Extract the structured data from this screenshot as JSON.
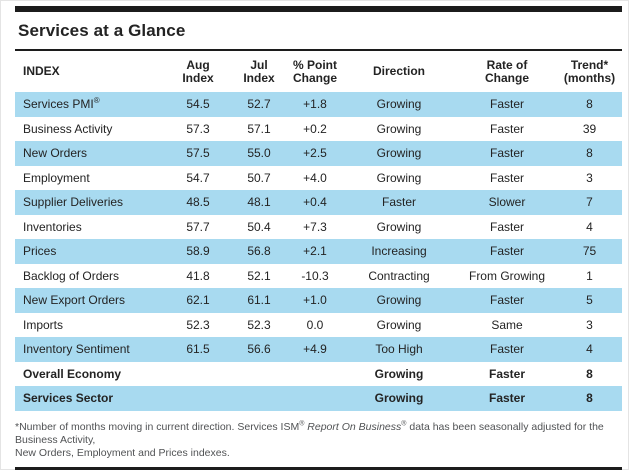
{
  "title": "Services at a Glance",
  "table": {
    "columns": [
      {
        "line1": "INDEX",
        "line2": ""
      },
      {
        "line1": "Aug",
        "line2": "Index"
      },
      {
        "line1": "Jul",
        "line2": "Index"
      },
      {
        "line1": "% Point",
        "line2": "Change"
      },
      {
        "line1": "Direction",
        "line2": ""
      },
      {
        "line1": "Rate of",
        "line2": "Change"
      },
      {
        "line1": "Trend*",
        "line2": "(months)"
      }
    ],
    "rows": [
      {
        "index": "Services PMI",
        "sup": "®",
        "aug": "54.5",
        "jul": "52.7",
        "change": "+1.8",
        "direction": "Growing",
        "rate": "Faster",
        "trend": "8",
        "shade": true,
        "bold": false
      },
      {
        "index": "Business Activity",
        "sup": "",
        "aug": "57.3",
        "jul": "57.1",
        "change": "+0.2",
        "direction": "Growing",
        "rate": "Faster",
        "trend": "39",
        "shade": false,
        "bold": false
      },
      {
        "index": "New Orders",
        "sup": "",
        "aug": "57.5",
        "jul": "55.0",
        "change": "+2.5",
        "direction": "Growing",
        "rate": "Faster",
        "trend": "8",
        "shade": true,
        "bold": false
      },
      {
        "index": "Employment",
        "sup": "",
        "aug": "54.7",
        "jul": "50.7",
        "change": "+4.0",
        "direction": "Growing",
        "rate": "Faster",
        "trend": "3",
        "shade": false,
        "bold": false
      },
      {
        "index": "Supplier Deliveries",
        "sup": "",
        "aug": "48.5",
        "jul": "48.1",
        "change": "+0.4",
        "direction": "Faster",
        "rate": "Slower",
        "trend": "7",
        "shade": true,
        "bold": false
      },
      {
        "index": "Inventories",
        "sup": "",
        "aug": "57.7",
        "jul": "50.4",
        "change": "+7.3",
        "direction": "Growing",
        "rate": "Faster",
        "trend": "4",
        "shade": false,
        "bold": false
      },
      {
        "index": "Prices",
        "sup": "",
        "aug": "58.9",
        "jul": "56.8",
        "change": "+2.1",
        "direction": "Increasing",
        "rate": "Faster",
        "trend": "75",
        "shade": true,
        "bold": false
      },
      {
        "index": "Backlog of Orders",
        "sup": "",
        "aug": "41.8",
        "jul": "52.1",
        "change": "-10.3",
        "direction": "Contracting",
        "rate": "From Growing",
        "trend": "1",
        "shade": false,
        "bold": false
      },
      {
        "index": "New Export Orders",
        "sup": "",
        "aug": "62.1",
        "jul": "61.1",
        "change": "+1.0",
        "direction": "Growing",
        "rate": "Faster",
        "trend": "5",
        "shade": true,
        "bold": false
      },
      {
        "index": "Imports",
        "sup": "",
        "aug": "52.3",
        "jul": "52.3",
        "change": "0.0",
        "direction": "Growing",
        "rate": "Same",
        "trend": "3",
        "shade": false,
        "bold": false
      },
      {
        "index": "Inventory Sentiment",
        "sup": "",
        "aug": "61.5",
        "jul": "56.6",
        "change": "+4.9",
        "direction": "Too High",
        "rate": "Faster",
        "trend": "4",
        "shade": true,
        "bold": false
      },
      {
        "index": "Overall Economy",
        "sup": "",
        "aug": "",
        "jul": "",
        "change": "",
        "direction": "Growing",
        "rate": "Faster",
        "trend": "8",
        "shade": false,
        "bold": true
      },
      {
        "index": "Services Sector",
        "sup": "",
        "aug": "",
        "jul": "",
        "change": "",
        "direction": "Growing",
        "rate": "Faster",
        "trend": "8",
        "shade": true,
        "bold": true
      }
    ]
  },
  "footnote": {
    "prefix": "*Number of months moving in current direction. Services ISM",
    "reg1": "®",
    "italic_title": "Report On Business",
    "reg2": "®",
    "line1_rest": " data has been seasonally adjusted for the Business Activity,",
    "line2": "New Orders, Employment and Prices indexes."
  },
  "colors": {
    "row_shade": "#a8daf0",
    "rule_black": "#1c1c1c",
    "text_dark": "#232323",
    "footnote_gray": "#505254"
  }
}
